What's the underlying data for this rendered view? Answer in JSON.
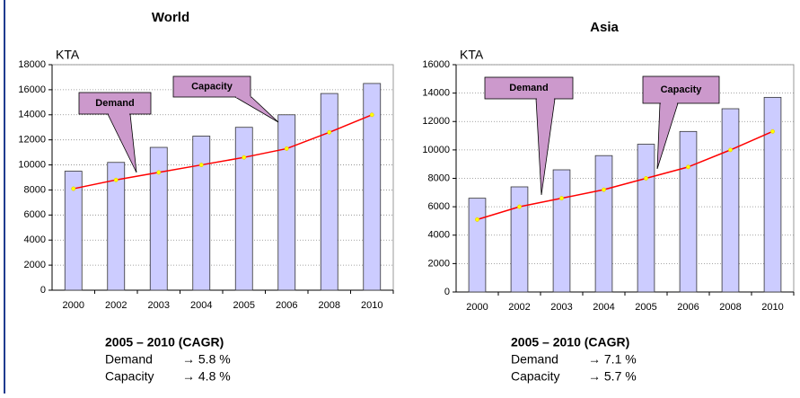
{
  "chart_data": [
    {
      "type": "bar-line",
      "title": "World",
      "y_label": "KTA",
      "categories": [
        "2000",
        "2002",
        "2003",
        "2004",
        "2005",
        "2006",
        "2008",
        "2010"
      ],
      "series": [
        {
          "name": "Capacity",
          "kind": "bar",
          "color": "#ccccff",
          "values": [
            9500,
            10200,
            11400,
            12300,
            13000,
            14000,
            15700,
            16500
          ]
        },
        {
          "name": "Demand",
          "kind": "line",
          "color": "#ff0000",
          "values": [
            8100,
            8800,
            9400,
            10000,
            10600,
            11300,
            12600,
            14000
          ]
        }
      ],
      "ylim": [
        0,
        18000
      ],
      "yticks": [
        0,
        2000,
        4000,
        6000,
        8000,
        10000,
        12000,
        14000,
        16000,
        18000
      ],
      "grid": true,
      "cagr_title": "2005 – 2010 (CAGR)",
      "cagr_rows": [
        [
          "Demand",
          "→ 5.8 %"
        ],
        [
          "Capacity",
          "→ 4.8 %"
        ]
      ]
    },
    {
      "type": "bar-line",
      "title": "Asia",
      "y_label": "KTA",
      "categories": [
        "2000",
        "2002",
        "2003",
        "2004",
        "2005",
        "2006",
        "2008",
        "2010"
      ],
      "series": [
        {
          "name": "Capacity",
          "kind": "bar",
          "color": "#ccccff",
          "values": [
            6600,
            7400,
            8600,
            9600,
            10400,
            11300,
            12900,
            13700
          ]
        },
        {
          "name": "Demand",
          "kind": "line",
          "color": "#ff0000",
          "values": [
            5100,
            6000,
            6600,
            7200,
            8000,
            8800,
            10000,
            11300
          ]
        }
      ],
      "ylim": [
        0,
        16000
      ],
      "yticks": [
        0,
        2000,
        4000,
        6000,
        8000,
        10000,
        12000,
        14000,
        16000
      ],
      "grid": true,
      "cagr_title": "2005 – 2010 (CAGR)",
      "cagr_rows": [
        [
          "Demand",
          "→ 7.1 %"
        ],
        [
          "Capacity",
          "→ 5.7 %"
        ]
      ]
    }
  ]
}
